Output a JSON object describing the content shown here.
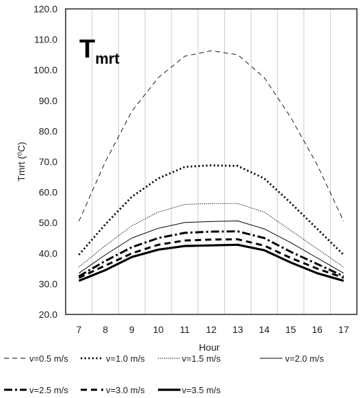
{
  "chart_data": {
    "type": "line",
    "title": {
      "main": "T",
      "subscript": "mrt"
    },
    "xlabel": "Hour",
    "ylabel": "Tmrt (⁰C)",
    "x": [
      7,
      8,
      9,
      10,
      11,
      12,
      13,
      14,
      15,
      16,
      17
    ],
    "ylim": [
      20.0,
      120.0
    ],
    "yticks": [
      "20.0",
      "30.0",
      "40.0",
      "50.0",
      "60.0",
      "70.0",
      "80.0",
      "90.0",
      "100.0",
      "110.0",
      "120.0"
    ],
    "grid": "vertical",
    "legend_position": "bottom",
    "series": [
      {
        "name": "v=0.5 m/s",
        "style": "long-dash-thin",
        "values": [
          50.5,
          70.0,
          86.5,
          97.5,
          104.5,
          106.3,
          105.0,
          97.5,
          84.5,
          69.0,
          50.5
        ]
      },
      {
        "name": "v=1.0 m/s",
        "style": "dotted-thick",
        "values": [
          39.5,
          49.5,
          58.5,
          64.5,
          68.3,
          68.8,
          68.6,
          64.5,
          56.5,
          48.0,
          39.5
        ]
      },
      {
        "name": "v=1.5 m/s",
        "style": "dotted-thin",
        "values": [
          35.5,
          42.5,
          49.0,
          53.5,
          56.0,
          56.3,
          56.3,
          53.5,
          47.5,
          41.5,
          35.5
        ]
      },
      {
        "name": "v=2.0 m/s",
        "style": "solid-thin",
        "values": [
          33.5,
          39.5,
          45.0,
          48.2,
          50.1,
          50.4,
          50.6,
          48.0,
          43.5,
          38.5,
          33.5
        ]
      },
      {
        "name": "v=2.5 m/s",
        "style": "dash-dot-thick",
        "values": [
          32.5,
          37.5,
          42.0,
          45.0,
          46.7,
          47.1,
          47.2,
          45.0,
          40.5,
          36.5,
          32.5
        ]
      },
      {
        "name": "v=3.0 m/s",
        "style": "dashed-thick",
        "values": [
          32.0,
          36.0,
          40.0,
          42.8,
          44.2,
          44.5,
          44.6,
          42.5,
          38.5,
          35.0,
          32.0
        ]
      },
      {
        "name": "v=3.5 m/s",
        "style": "solid-thick",
        "values": [
          31.0,
          34.5,
          38.8,
          41.2,
          42.4,
          42.6,
          42.8,
          41.0,
          37.0,
          33.5,
          31.0
        ]
      }
    ]
  }
}
